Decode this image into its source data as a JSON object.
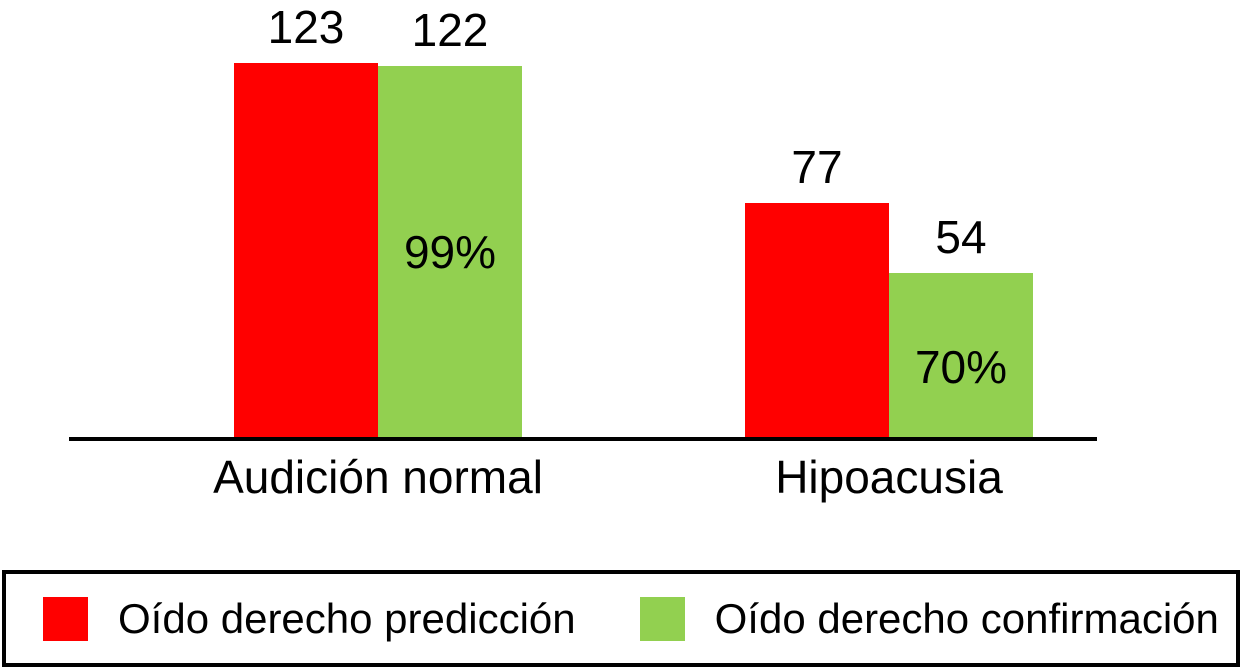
{
  "chart_data": {
    "type": "bar",
    "categories": [
      "Audición normal",
      "Hipoacusia"
    ],
    "series": [
      {
        "name": "Oído derecho predicción",
        "color": "#ff0000",
        "values": [
          123,
          77
        ]
      },
      {
        "name": "Oído derecho confirmación",
        "color": "#92d050",
        "values": [
          122,
          54
        ],
        "inside_labels": [
          "99%",
          "70%"
        ]
      }
    ],
    "title": "",
    "xlabel": "",
    "ylabel": "",
    "ylim": [
      0,
      123
    ],
    "grid": false,
    "legend_position": "bottom",
    "axis_color": "#000000",
    "text_color": "#000000",
    "background_color": "#ffffff"
  }
}
